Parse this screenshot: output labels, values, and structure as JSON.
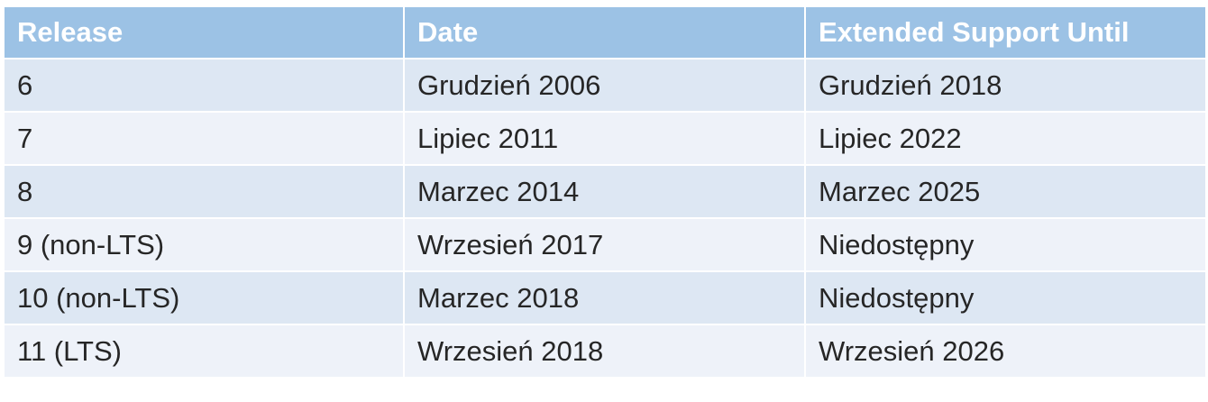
{
  "table": {
    "headers": [
      "Release",
      "Date",
      "Extended Support Until"
    ],
    "rows": [
      [
        "6",
        "Grudzień 2006",
        "Grudzień 2018"
      ],
      [
        "7",
        "Lipiec 2011",
        "Lipiec 2022"
      ],
      [
        "8",
        "Marzec 2014",
        "Marzec 2025"
      ],
      [
        "9 (non-LTS)",
        "Wrzesień 2017",
        "Niedostępny"
      ],
      [
        "10 (non-LTS)",
        "Marzec 2018",
        "Niedostępny"
      ],
      [
        "11 (LTS)",
        "Wrzesień 2018",
        "Wrzesień 2026"
      ]
    ]
  },
  "colors": {
    "header_bg": "#9cc2e5",
    "row_odd_bg": "#dde7f3",
    "row_even_bg": "#eef2f9",
    "header_text": "#ffffff",
    "cell_text": "#262626"
  }
}
